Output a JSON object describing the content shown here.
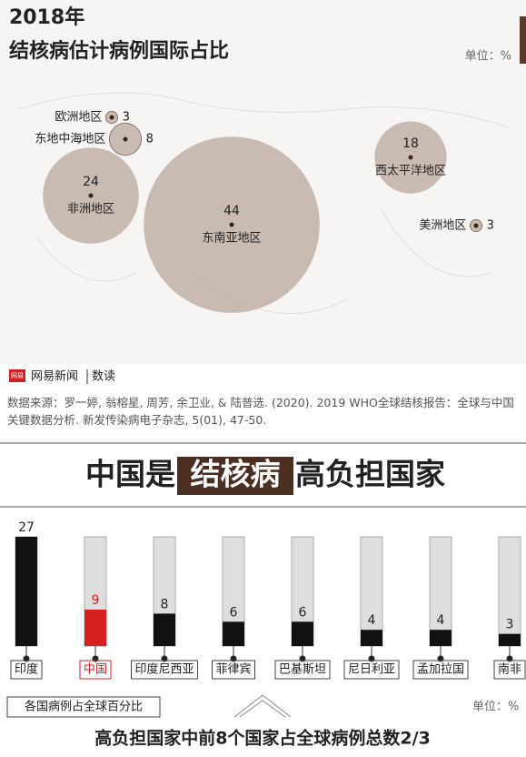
{
  "brand": {
    "logo": "网易",
    "name": "网易新闻",
    "section": "数读"
  },
  "source": "数据来源：罗一婷, 翁榕星, 周芳, 余卫业, & 陆普选. (2020). 2019 WHO全球结核报告：全球与中国关键数据分析. 新发传染病电子杂志, 5(01), 47-50.",
  "banner": [
    "中国是",
    "结核病",
    "高负担国家"
  ],
  "footer": "高负担国家中前8个国家占全球病例总数2/3",
  "chart_data": [
    {
      "type": "bubble",
      "title": "2018年",
      "subtitle": "结核病估计病例国际占比",
      "unit": "单位：%",
      "categories": [
        "欧洲地区",
        "东地中海地区",
        "非洲地区",
        "东南亚地区",
        "西太平洋地区",
        "美洲地区"
      ],
      "values": [
        3,
        8,
        24,
        44,
        18,
        3
      ],
      "color": "#b9a59c"
    },
    {
      "type": "bar",
      "label": "各国病例占全球百分比",
      "unit": "单位：%",
      "categories": [
        "印度",
        "中国",
        "印度尼西亚",
        "菲律宾",
        "巴基斯坦",
        "尼日利亚",
        "孟加拉国",
        "南非"
      ],
      "values": [
        27,
        9,
        8,
        6,
        6,
        4,
        4,
        3
      ],
      "colors": [
        "#111111",
        "#d42020",
        "#111111",
        "#111111",
        "#111111",
        "#111111",
        "#111111",
        "#111111"
      ],
      "ylim": [
        0,
        27
      ]
    }
  ]
}
